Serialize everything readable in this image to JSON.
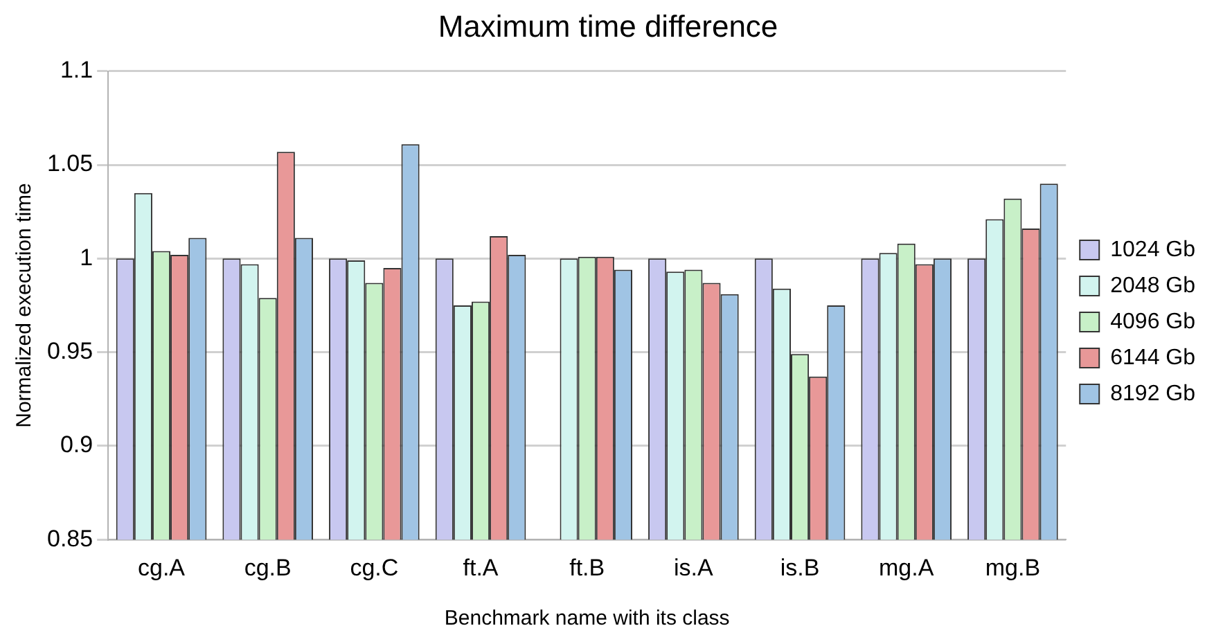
{
  "chart_data": {
    "type": "bar",
    "title": "Maximum time difference",
    "xlabel": "Benchmark name with its class",
    "ylabel": "Normalized execution time",
    "categories": [
      "cg.A",
      "cg.B",
      "cg.C",
      "ft.A",
      "ft.B",
      "is.A",
      "is.B",
      "mg.A",
      "mg.B"
    ],
    "series": [
      {
        "name": "1024 Gb",
        "color": "#c8c8f0",
        "values": [
          1.0,
          1.0,
          1.0,
          1.0,
          null,
          1.0,
          1.0,
          1.0,
          1.0
        ]
      },
      {
        "name": "2048 Gb",
        "color": "#d2f4ef",
        "values": [
          1.035,
          0.997,
          0.999,
          0.975,
          1.0,
          0.993,
          0.984,
          1.003,
          1.021
        ]
      },
      {
        "name": "4096 Gb",
        "color": "#c8f0c8",
        "values": [
          1.004,
          0.979,
          0.987,
          0.977,
          1.001,
          0.994,
          0.949,
          1.008,
          1.032
        ]
      },
      {
        "name": "6144 Gb",
        "color": "#e89898",
        "values": [
          1.002,
          1.057,
          0.995,
          1.012,
          1.001,
          0.987,
          0.937,
          0.997,
          1.016
        ]
      },
      {
        "name": "8192 Gb",
        "color": "#a0c4e4",
        "values": [
          1.011,
          1.011,
          1.061,
          1.002,
          0.994,
          0.981,
          0.975,
          1.0,
          1.04
        ]
      }
    ],
    "ylim": [
      0.85,
      1.1
    ],
    "yticks": [
      0.85,
      0.9,
      0.95,
      1,
      1.05,
      1.1
    ],
    "grid": "y",
    "legend": "right"
  }
}
